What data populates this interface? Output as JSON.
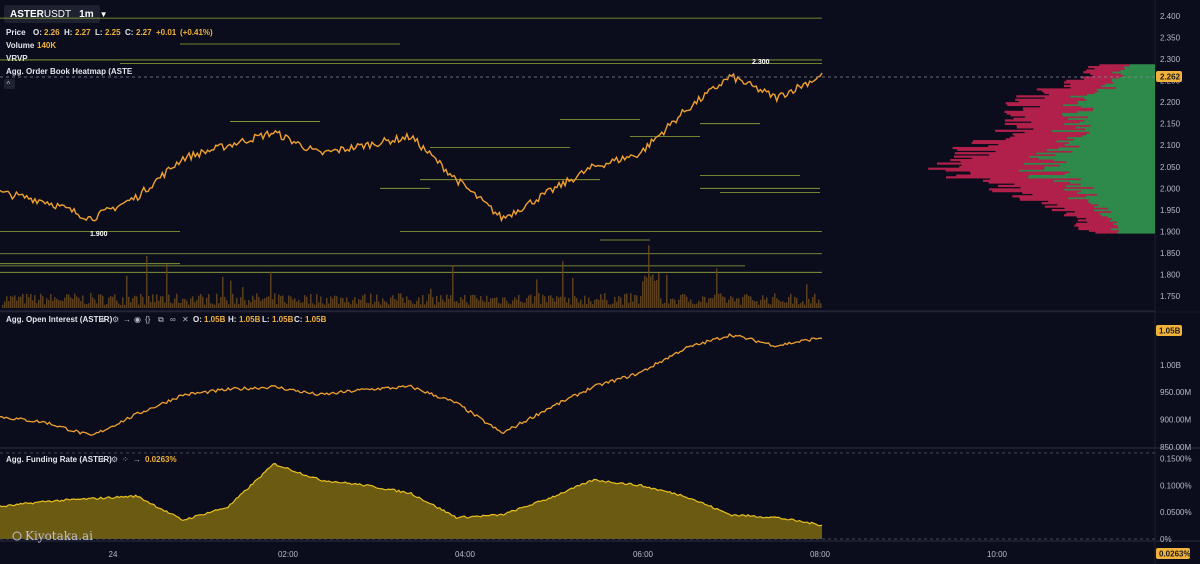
{
  "header": {
    "symbol_bold": "ASTER",
    "symbol_rest": "USDT",
    "interval": "1m",
    "price_label": "Price",
    "o_label": "O:",
    "o": "2.26",
    "h_label": "H:",
    "h": "2.27",
    "l_label": "L:",
    "l": "2.25",
    "c_label": "C:",
    "c": "2.27",
    "change": "+0.01",
    "change_pct": "(+0.41%)",
    "volume_label": "Volume",
    "volume_value": "140K",
    "vrvp_label": "VRVP",
    "heatmap_label": "Agg. Order Book Heatmap (ASTE"
  },
  "oi_header": {
    "label": "Agg. Open Interest (ASTER)",
    "o_label": "O:",
    "o": "1.05B",
    "h_label": "H:",
    "h": "1.05B",
    "l_label": "L:",
    "l": "1.05B",
    "c_label": "C:",
    "c": "1.05B"
  },
  "fr_header": {
    "label": "Agg. Funding Rate (ASTER)",
    "value": "0.0263%"
  },
  "watermark": "Kiyotaka.ai",
  "colors": {
    "background": "#0b0d1c",
    "candle": "#f0a030",
    "level_line": "#b8d040",
    "vrvp_buy": "#2e8a4a",
    "vrvp_sell": "#b0204a",
    "oi_line": "#f0a030",
    "funding_fill": "#6b5a12",
    "funding_line": "#e8c020",
    "badge": "#f0b23a"
  },
  "chart_data": [
    {
      "type": "line",
      "title": "ASTERUSDT 1m",
      "ylim": [
        1.72,
        2.42
      ],
      "y_ticks": [
        "2.400",
        "2.350",
        "2.300",
        "2.250",
        "2.200",
        "2.150",
        "2.100",
        "2.050",
        "2.000",
        "1.950",
        "1.900",
        "1.850",
        "1.800",
        "1.750"
      ],
      "current_price": "2.262",
      "annotations": [
        {
          "label": "2.300",
          "x": "07:48",
          "y": 2.3
        },
        {
          "label": "1.900",
          "x": "00:22",
          "y": 1.9
        }
      ],
      "x": [
        "23:00",
        "23:30",
        "00:00",
        "00:30",
        "01:00",
        "01:30",
        "02:00",
        "02:30",
        "03:00",
        "03:30",
        "04:00",
        "04:30",
        "05:00",
        "05:30",
        "06:00",
        "06:30",
        "07:00",
        "07:30",
        "08:00"
      ],
      "price": [
        1.99,
        1.97,
        1.93,
        1.98,
        2.07,
        2.1,
        2.13,
        2.08,
        2.1,
        2.12,
        2.02,
        1.93,
        1.99,
        2.05,
        2.08,
        2.18,
        2.26,
        2.21,
        2.262
      ],
      "volume_max_visible": "140K"
    },
    {
      "type": "line",
      "title": "Agg. Open Interest (ASTER)",
      "y_ticks": [
        "1.05B",
        "1.00B",
        "950.00M",
        "900.00M",
        "850.00M"
      ],
      "current": "1.05B",
      "x": [
        "23:00",
        "23:30",
        "00:00",
        "00:30",
        "01:00",
        "01:30",
        "02:00",
        "02:30",
        "03:00",
        "03:30",
        "04:00",
        "04:30",
        "05:00",
        "05:30",
        "06:00",
        "06:30",
        "07:00",
        "07:30",
        "08:00"
      ],
      "values_millions": [
        905,
        895,
        870,
        910,
        945,
        955,
        960,
        945,
        955,
        960,
        930,
        875,
        920,
        960,
        985,
        1030,
        1055,
        1035,
        1050
      ]
    },
    {
      "type": "area",
      "title": "Agg. Funding Rate (ASTER)",
      "y_ticks": [
        "0.1500%",
        "0.1000%",
        "0.0500%",
        "0%"
      ],
      "current": "0.0263%",
      "x": [
        "23:00",
        "23:30",
        "00:00",
        "00:30",
        "01:00",
        "01:30",
        "02:00",
        "02:30",
        "03:00",
        "03:30",
        "04:00",
        "04:30",
        "05:00",
        "05:30",
        "06:00",
        "06:30",
        "07:00",
        "07:30",
        "08:00"
      ],
      "values_pct": [
        0.06,
        0.07,
        0.075,
        0.08,
        0.035,
        0.06,
        0.14,
        0.11,
        0.1,
        0.085,
        0.04,
        0.045,
        0.075,
        0.11,
        0.1,
        0.08,
        0.045,
        0.04,
        0.026
      ]
    }
  ],
  "x_axis": {
    "labels": [
      "24",
      "02:00",
      "04:00",
      "06:00",
      "08:00",
      "10:00"
    ]
  },
  "oi_axis": {
    "labels": [
      "1.05B",
      "1.00B",
      "950.00M",
      "900.00M",
      "850.00M"
    ]
  },
  "fr_axis": {
    "labels": [
      "0.1500%",
      "0.1000%",
      "0.0500%",
      "0%"
    ]
  },
  "price_axis": {
    "labels": [
      "2.400",
      "2.350",
      "2.300",
      "2.250",
      "2.200",
      "2.150",
      "2.100",
      "2.050",
      "2.000",
      "1.950",
      "1.900",
      "1.850",
      "1.800",
      "1.750"
    ]
  }
}
